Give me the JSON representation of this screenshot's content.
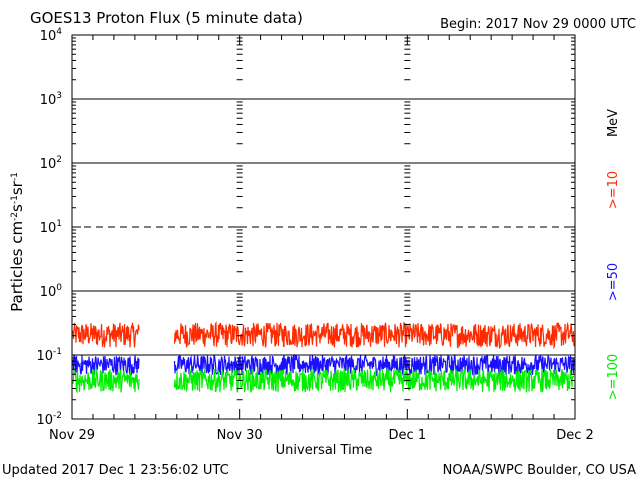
{
  "header": {
    "title": "GOES13 Proton Flux (5 minute data)",
    "begin": "Begin: 2017 Nov 29 0000 UTC"
  },
  "footer": {
    "updated": "Updated 2017 Dec  1 23:56:02 UTC",
    "credit": "NOAA/SWPC Boulder, CO USA"
  },
  "chart_data": {
    "type": "line",
    "title": "GOES13 Proton Flux (5 minute data)",
    "xlabel": "Universal Time",
    "ylabel": "Particles cm-2s-1sr-1",
    "yscale": "log",
    "ylim": [
      0.01,
      10000
    ],
    "xlim": [
      0,
      3
    ],
    "x_ticks": [
      {
        "value": 0,
        "label": "Nov 29"
      },
      {
        "value": 1,
        "label": "Nov 30"
      },
      {
        "value": 2,
        "label": "Dec 1"
      },
      {
        "value": 3,
        "label": "Dec 2"
      }
    ],
    "y_ticks": [
      {
        "value": 0.01,
        "base": "10",
        "exp": "-2"
      },
      {
        "value": 0.1,
        "base": "10",
        "exp": "-1"
      },
      {
        "value": 1,
        "base": "10",
        "exp": "0"
      },
      {
        "value": 10,
        "base": "10",
        "exp": "1"
      },
      {
        "value": 100,
        "base": "10",
        "exp": "2"
      },
      {
        "value": 1000,
        "base": "10",
        "exp": "3"
      },
      {
        "value": 10000,
        "base": "10",
        "exp": "4"
      }
    ],
    "reference_lines": [
      {
        "value": 0.1,
        "style": "solid"
      },
      {
        "value": 1,
        "style": "solid"
      },
      {
        "value": 10,
        "style": "dashed"
      },
      {
        "value": 100,
        "style": "solid"
      },
      {
        "value": 1000,
        "style": "solid"
      }
    ],
    "data_gap": [
      0.4,
      0.61
    ],
    "legend_unit": "MeV",
    "series": [
      {
        "name": ">=10",
        "color": "#ff2a00",
        "range": [
          0.13,
          0.32
        ]
      },
      {
        "name": ">=50",
        "color": "#1a10ff",
        "range": [
          0.048,
          0.1
        ]
      },
      {
        "name": ">=100",
        "color": "#00ee00",
        "range": [
          0.026,
          0.06
        ]
      }
    ]
  }
}
